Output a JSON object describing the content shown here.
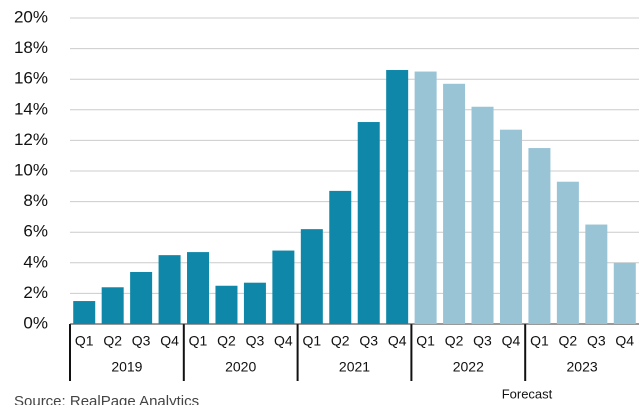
{
  "chart_data": {
    "type": "bar",
    "categories": [
      "Q1",
      "Q2",
      "Q3",
      "Q4",
      "Q1",
      "Q2",
      "Q3",
      "Q4",
      "Q1",
      "Q2",
      "Q3",
      "Q4",
      "Q1",
      "Q2",
      "Q3",
      "Q4",
      "Q1",
      "Q2",
      "Q3",
      "Q4"
    ],
    "groups": [
      "2019",
      "2020",
      "2021",
      "2022",
      "2023"
    ],
    "values": [
      1.5,
      2.4,
      3.4,
      4.5,
      4.7,
      2.5,
      2.7,
      4.8,
      6.2,
      8.7,
      13.2,
      16.6,
      16.5,
      15.7,
      14.2,
      12.7,
      11.5,
      9.3,
      6.5,
      4.0
    ],
    "colors": [
      "#0e87a8",
      "#0e87a8",
      "#0e87a8",
      "#0e87a8",
      "#0e87a8",
      "#0e87a8",
      "#0e87a8",
      "#0e87a8",
      "#0e87a8",
      "#0e87a8",
      "#0e87a8",
      "#0e87a8",
      "#98c4d6",
      "#98c4d6",
      "#98c4d6",
      "#98c4d6",
      "#98c4d6",
      "#98c4d6",
      "#98c4d6",
      "#98c4d6"
    ],
    "ylim": [
      0,
      20
    ],
    "yticks": [
      {
        "value": 0,
        "label": "0%"
      },
      {
        "value": 2,
        "label": "2%"
      },
      {
        "value": 4,
        "label": "4%"
      },
      {
        "value": 6,
        "label": "6%"
      },
      {
        "value": 8,
        "label": "8%"
      },
      {
        "value": 10,
        "label": "10%"
      },
      {
        "value": 12,
        "label": "12%"
      },
      {
        "value": 14,
        "label": "14%"
      },
      {
        "value": 16,
        "label": "16%"
      },
      {
        "value": 18,
        "label": "18%"
      },
      {
        "value": 20,
        "label": "20%"
      }
    ],
    "grid": true,
    "annotation": "Forecast",
    "source": "Source: RealPage Analytics"
  }
}
